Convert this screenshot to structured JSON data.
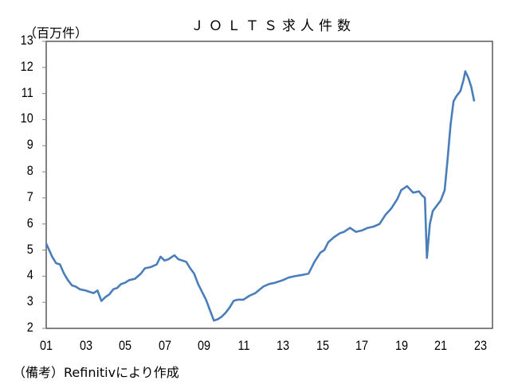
{
  "chart_data": {
    "type": "line",
    "title": "ＪＯＬＴＳ求人件数",
    "ylabel": "（百万件）",
    "xlabel": "",
    "ylim": [
      2,
      13
    ],
    "xlim": [
      2001,
      2023.6
    ],
    "yticks": [
      2,
      3,
      4,
      5,
      6,
      7,
      8,
      9,
      10,
      11,
      12,
      13
    ],
    "xtick_labels": [
      "01",
      "03",
      "05",
      "07",
      "09",
      "11",
      "13",
      "15",
      "17",
      "19",
      "21",
      "23"
    ],
    "xtick_years": [
      2001,
      2003,
      2005,
      2007,
      2009,
      2011,
      2013,
      2015,
      2017,
      2019,
      2021,
      2023
    ],
    "grid": false,
    "legend": null,
    "series": [
      {
        "name": "JOLTS求人件数",
        "color": "#4a7ebb",
        "x": [
          2001.0,
          2001.15,
          2001.3,
          2001.5,
          2001.7,
          2001.9,
          2002.1,
          2002.3,
          2002.5,
          2002.7,
          2003.0,
          2003.2,
          2003.4,
          2003.6,
          2003.8,
          2004.0,
          2004.2,
          2004.4,
          2004.6,
          2004.8,
          2005.0,
          2005.2,
          2005.5,
          2005.8,
          2006.0,
          2006.3,
          2006.6,
          2006.8,
          2007.0,
          2007.2,
          2007.5,
          2007.7,
          2007.9,
          2008.1,
          2008.3,
          2008.5,
          2008.7,
          2008.9,
          2009.1,
          2009.3,
          2009.5,
          2009.7,
          2009.9,
          2010.1,
          2010.3,
          2010.5,
          2010.7,
          2011.0,
          2011.3,
          2011.6,
          2012.0,
          2012.3,
          2012.6,
          2013.0,
          2013.3,
          2013.6,
          2014.0,
          2014.3,
          2014.6,
          2014.9,
          2015.1,
          2015.3,
          2015.6,
          2015.9,
          2016.1,
          2016.4,
          2016.7,
          2017.0,
          2017.3,
          2017.6,
          2017.9,
          2018.2,
          2018.5,
          2018.8,
          2019.0,
          2019.3,
          2019.6,
          2019.9,
          2020.05,
          2020.2,
          2020.3,
          2020.45,
          2020.6,
          2020.8,
          2021.0,
          2021.2,
          2021.35,
          2021.5,
          2021.65,
          2021.8,
          2022.0,
          2022.15,
          2022.25,
          2022.4,
          2022.55,
          2022.7
        ],
        "values": [
          5.25,
          5.0,
          4.75,
          4.5,
          4.45,
          4.1,
          3.85,
          3.65,
          3.6,
          3.5,
          3.45,
          3.4,
          3.35,
          3.45,
          3.05,
          3.2,
          3.3,
          3.5,
          3.55,
          3.7,
          3.75,
          3.85,
          3.9,
          4.1,
          4.3,
          4.35,
          4.45,
          4.75,
          4.6,
          4.65,
          4.8,
          4.65,
          4.6,
          4.55,
          4.3,
          4.1,
          3.7,
          3.4,
          3.1,
          2.7,
          2.3,
          2.35,
          2.45,
          2.6,
          2.8,
          3.05,
          3.1,
          3.1,
          3.25,
          3.35,
          3.6,
          3.7,
          3.75,
          3.85,
          3.95,
          4.0,
          4.05,
          4.1,
          4.55,
          4.9,
          5.0,
          5.3,
          5.5,
          5.65,
          5.7,
          5.85,
          5.7,
          5.75,
          5.85,
          5.9,
          6.0,
          6.35,
          6.6,
          6.95,
          7.3,
          7.45,
          7.2,
          7.25,
          7.1,
          7.0,
          4.7,
          6.0,
          6.5,
          6.7,
          6.9,
          7.3,
          8.5,
          9.8,
          10.7,
          10.9,
          11.1,
          11.5,
          11.85,
          11.6,
          11.25,
          10.7
        ]
      }
    ]
  },
  "title": "ＪＯＬＴＳ求人件数",
  "unit_label": "（百万件）",
  "source_note": "（備考）Refinitivにより作成",
  "colors": {
    "line": "#4a7ebb",
    "axis": "#808080",
    "frame": "#595959"
  }
}
